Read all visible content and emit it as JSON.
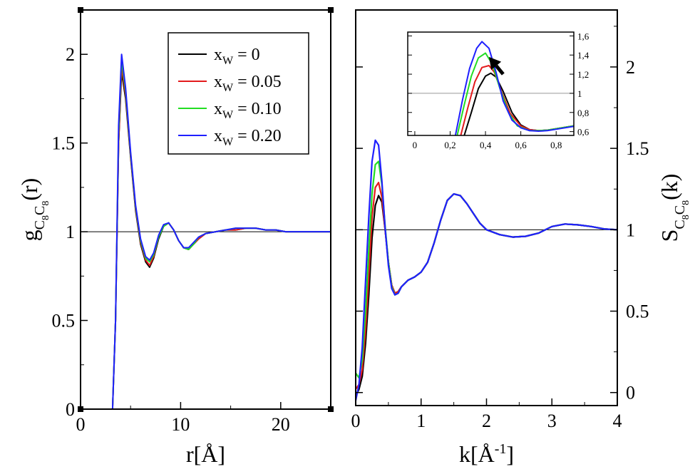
{
  "chart_data": [
    {
      "type": "line",
      "ylabel": "g",
      "ylabel_sub": "C8C8",
      "ylabel_suffix": "(r)",
      "xlabel": "r[Å]",
      "xlim": [
        0,
        25
      ],
      "ylim": [
        0,
        2.25
      ],
      "xticks": [
        "0",
        "10",
        "20"
      ],
      "xtick_values": [
        0,
        10,
        20
      ],
      "yticks": [
        "0",
        "0.5",
        "1",
        "1.5",
        "2"
      ],
      "ytick_values": [
        0,
        0.5,
        1,
        1.5,
        2
      ],
      "reference_line": 1,
      "legend": {
        "placement": "top-right",
        "entries": [
          {
            "var": "x",
            "sub": "W",
            "rest": " = 0",
            "color": "#000000"
          },
          {
            "var": "x",
            "sub": "W",
            "rest": " = 0.05",
            "color": "#e31a1c"
          },
          {
            "var": "x",
            "sub": "W",
            "rest": " = 0.10",
            "color": "#22dd22"
          },
          {
            "var": "x",
            "sub": "W",
            "rest": " = 0.20",
            "color": "#1f1fff"
          }
        ]
      },
      "series": [
        {
          "name": "xW = 0",
          "color": "#000000",
          "x": [
            3.2,
            3.5,
            3.8,
            4.1,
            4.5,
            5.0,
            5.5,
            6.0,
            6.5,
            6.9,
            7.3,
            7.8,
            8.3,
            8.8,
            9.3,
            9.8,
            10.3,
            10.8,
            11.3,
            11.8,
            12.5,
            13.5,
            14.5,
            15.5,
            16.5,
            17.5,
            18.5,
            19.5,
            20.5,
            21.5,
            22.5,
            23.5,
            25.0
          ],
          "y": [
            0.0,
            0.5,
            1.5,
            1.9,
            1.75,
            1.42,
            1.12,
            0.93,
            0.83,
            0.8,
            0.85,
            0.96,
            1.03,
            1.05,
            1.01,
            0.95,
            0.91,
            0.9,
            0.93,
            0.96,
            0.99,
            1.0,
            1.01,
            1.01,
            1.02,
            1.02,
            1.01,
            1.01,
            1.0,
            1.0,
            1.0,
            1.0,
            1.0
          ]
        },
        {
          "name": "xW = 0.05",
          "color": "#e31a1c",
          "x": [
            3.2,
            3.5,
            3.8,
            4.1,
            4.5,
            5.0,
            5.5,
            6.0,
            6.5,
            6.9,
            7.3,
            7.8,
            8.3,
            8.8,
            9.3,
            9.8,
            10.3,
            10.8,
            11.3,
            11.8,
            12.5,
            13.5,
            14.5,
            15.5,
            16.5,
            17.5,
            18.5,
            19.5,
            20.5,
            21.5,
            22.5,
            23.5,
            25.0
          ],
          "y": [
            0.0,
            0.5,
            1.5,
            1.93,
            1.77,
            1.43,
            1.13,
            0.94,
            0.84,
            0.81,
            0.86,
            0.97,
            1.03,
            1.05,
            1.01,
            0.95,
            0.91,
            0.9,
            0.93,
            0.96,
            0.99,
            1.0,
            1.01,
            1.01,
            1.02,
            1.02,
            1.01,
            1.01,
            1.0,
            1.0,
            1.0,
            1.0,
            1.0
          ]
        },
        {
          "name": "xW = 0.10",
          "color": "#22dd22",
          "x": [
            3.2,
            3.5,
            3.8,
            4.1,
            4.5,
            5.0,
            5.5,
            6.0,
            6.5,
            6.9,
            7.3,
            7.8,
            8.3,
            8.8,
            9.3,
            9.8,
            10.3,
            10.8,
            11.3,
            11.8,
            12.5,
            13.5,
            14.5,
            15.5,
            16.5,
            17.5,
            18.5,
            19.5,
            20.5,
            21.5,
            22.5,
            23.5,
            25.0
          ],
          "y": [
            0.0,
            0.5,
            1.55,
            1.97,
            1.79,
            1.44,
            1.14,
            0.95,
            0.85,
            0.83,
            0.87,
            0.97,
            1.03,
            1.05,
            1.01,
            0.95,
            0.91,
            0.9,
            0.93,
            0.97,
            0.99,
            1.0,
            1.01,
            1.02,
            1.02,
            1.02,
            1.01,
            1.01,
            1.0,
            1.0,
            1.0,
            1.0,
            1.0
          ]
        },
        {
          "name": "xW = 0.20",
          "color": "#1f1fff",
          "x": [
            3.2,
            3.5,
            3.8,
            4.1,
            4.5,
            5.0,
            5.5,
            6.0,
            6.5,
            6.9,
            7.3,
            7.8,
            8.3,
            8.8,
            9.3,
            9.8,
            10.3,
            10.8,
            11.3,
            11.8,
            12.5,
            13.5,
            14.5,
            15.5,
            16.5,
            17.5,
            18.5,
            19.5,
            20.5,
            21.5,
            22.5,
            23.5,
            25.0
          ],
          "y": [
            0.0,
            0.5,
            1.6,
            2.0,
            1.81,
            1.45,
            1.15,
            0.96,
            0.86,
            0.84,
            0.88,
            0.98,
            1.04,
            1.05,
            1.01,
            0.95,
            0.91,
            0.91,
            0.94,
            0.97,
            0.99,
            1.0,
            1.01,
            1.02,
            1.02,
            1.02,
            1.01,
            1.01,
            1.0,
            1.0,
            1.0,
            1.0,
            1.0
          ]
        }
      ]
    },
    {
      "type": "line",
      "ylabel": "S",
      "ylabel_sub": "C8C8",
      "ylabel_suffix": "(k)",
      "xlabel": "k[Å",
      "xlabel_sup": "-1",
      "xlabel_suffix": "]",
      "xlim": [
        0,
        4
      ],
      "ylim": [
        -0.08,
        2.35
      ],
      "xticks": [
        "0",
        "1",
        "2",
        "3",
        "4"
      ],
      "xtick_values": [
        0,
        1,
        2,
        3,
        4
      ],
      "yticks": [
        "0",
        "0.5",
        "1",
        "1.5",
        "2"
      ],
      "ytick_values": [
        0,
        0.5,
        1,
        1.5,
        2
      ],
      "ytick_side": "right",
      "reference_line": 1,
      "series": [
        {
          "name": "xW = 0",
          "color": "#000000",
          "x": [
            0.0,
            0.05,
            0.1,
            0.15,
            0.2,
            0.25,
            0.3,
            0.35,
            0.4,
            0.45,
            0.5,
            0.55,
            0.6,
            0.65,
            0.7,
            0.8,
            0.9,
            1.0,
            1.1,
            1.2,
            1.3,
            1.4,
            1.5,
            1.6,
            1.7,
            1.8,
            1.9,
            2.0,
            2.2,
            2.4,
            2.6,
            2.8,
            3.0,
            3.2,
            3.4,
            3.6,
            3.8,
            4.0
          ],
          "y": [
            -0.02,
            0.02,
            0.1,
            0.3,
            0.6,
            0.95,
            1.15,
            1.21,
            1.17,
            1.0,
            0.8,
            0.66,
            0.61,
            0.62,
            0.65,
            0.69,
            0.71,
            0.74,
            0.8,
            0.92,
            1.06,
            1.18,
            1.22,
            1.21,
            1.16,
            1.1,
            1.04,
            1.0,
            0.97,
            0.955,
            0.96,
            0.98,
            1.02,
            1.035,
            1.03,
            1.02,
            1.005,
            1.0
          ]
        },
        {
          "name": "xW = 0.05",
          "color": "#e31a1c",
          "x": [
            0.0,
            0.05,
            0.1,
            0.15,
            0.2,
            0.25,
            0.3,
            0.35,
            0.4,
            0.45,
            0.5,
            0.55,
            0.6,
            0.65,
            0.7,
            0.8,
            0.9,
            1.0,
            1.1,
            1.2,
            1.3,
            1.4,
            1.5,
            1.6,
            1.7,
            1.8,
            1.9,
            2.0,
            2.2,
            2.4,
            2.6,
            2.8,
            3.0,
            3.2,
            3.4,
            3.6,
            3.8,
            4.0
          ],
          "y": [
            0.02,
            0.05,
            0.14,
            0.38,
            0.72,
            1.08,
            1.26,
            1.29,
            1.2,
            1.0,
            0.8,
            0.66,
            0.61,
            0.62,
            0.65,
            0.69,
            0.71,
            0.74,
            0.8,
            0.92,
            1.06,
            1.18,
            1.22,
            1.21,
            1.16,
            1.1,
            1.04,
            1.0,
            0.97,
            0.955,
            0.96,
            0.98,
            1.02,
            1.035,
            1.03,
            1.02,
            1.005,
            1.0
          ]
        },
        {
          "name": "xW = 0.10",
          "color": "#22dd22",
          "x": [
            0.0,
            0.05,
            0.1,
            0.15,
            0.2,
            0.25,
            0.3,
            0.35,
            0.4,
            0.45,
            0.5,
            0.55,
            0.6,
            0.65,
            0.7,
            0.8,
            0.9,
            1.0,
            1.1,
            1.2,
            1.3,
            1.4,
            1.5,
            1.6,
            1.7,
            1.8,
            1.9,
            2.0,
            2.2,
            2.4,
            2.6,
            2.8,
            3.0,
            3.2,
            3.4,
            3.6,
            3.8,
            4.0
          ],
          "y": [
            0.12,
            0.09,
            0.2,
            0.5,
            0.88,
            1.22,
            1.4,
            1.42,
            1.28,
            1.02,
            0.8,
            0.65,
            0.6,
            0.61,
            0.65,
            0.69,
            0.71,
            0.74,
            0.8,
            0.92,
            1.06,
            1.18,
            1.22,
            1.21,
            1.16,
            1.1,
            1.04,
            1.0,
            0.97,
            0.955,
            0.96,
            0.98,
            1.02,
            1.035,
            1.03,
            1.02,
            1.005,
            1.0
          ]
        },
        {
          "name": "xW = 0.20",
          "color": "#1f1fff",
          "x": [
            0.0,
            0.05,
            0.1,
            0.15,
            0.2,
            0.25,
            0.3,
            0.35,
            0.4,
            0.45,
            0.5,
            0.55,
            0.6,
            0.65,
            0.7,
            0.8,
            0.9,
            1.0,
            1.1,
            1.2,
            1.3,
            1.4,
            1.5,
            1.6,
            1.7,
            1.8,
            1.9,
            2.0,
            2.2,
            2.4,
            2.6,
            2.8,
            3.0,
            3.2,
            3.4,
            3.6,
            3.8,
            4.0
          ],
          "y": [
            -0.05,
            0.05,
            0.28,
            0.68,
            1.08,
            1.42,
            1.55,
            1.52,
            1.3,
            1.01,
            0.78,
            0.64,
            0.6,
            0.61,
            0.65,
            0.69,
            0.71,
            0.74,
            0.8,
            0.92,
            1.06,
            1.18,
            1.22,
            1.21,
            1.16,
            1.1,
            1.04,
            1.0,
            0.97,
            0.955,
            0.96,
            0.98,
            1.02,
            1.035,
            1.03,
            1.02,
            1.005,
            1.0
          ]
        }
      ],
      "inset": {
        "xlim": [
          -0.04,
          0.9
        ],
        "ylim": [
          0.56,
          1.64
        ],
        "xticks": [
          "0",
          "0,2",
          "0,4",
          "0,6",
          "0,8"
        ],
        "xtick_values": [
          0,
          0.2,
          0.4,
          0.6,
          0.8
        ],
        "yticks": [
          "0,6",
          "0,8",
          "1",
          "1,2",
          "1,4",
          "1,6"
        ],
        "ytick_values": [
          0.6,
          0.8,
          1.0,
          1.2,
          1.4,
          1.6
        ],
        "ytick_side": "right",
        "reference_line": 1,
        "arrow": {
          "from": [
            0.5,
            1.2
          ],
          "to": [
            0.42,
            1.38
          ]
        },
        "series": [
          {
            "name": "xW = 0",
            "color": "#000000",
            "x": [
              0.28,
              0.32,
              0.36,
              0.4,
              0.43,
              0.46,
              0.5,
              0.55,
              0.6,
              0.65,
              0.7,
              0.75,
              0.8,
              0.85,
              0.9
            ],
            "y": [
              0.56,
              0.8,
              1.05,
              1.18,
              1.21,
              1.17,
              1.02,
              0.8,
              0.67,
              0.62,
              0.61,
              0.615,
              0.63,
              0.645,
              0.66
            ]
          },
          {
            "name": "xW = 0.05",
            "color": "#e31a1c",
            "x": [
              0.26,
              0.3,
              0.34,
              0.38,
              0.42,
              0.45,
              0.49,
              0.54,
              0.6,
              0.65,
              0.7,
              0.75,
              0.8,
              0.85,
              0.9
            ],
            "y": [
              0.56,
              0.85,
              1.12,
              1.27,
              1.29,
              1.22,
              1.02,
              0.79,
              0.66,
              0.62,
              0.61,
              0.615,
              0.63,
              0.645,
              0.66
            ]
          },
          {
            "name": "xW = 0.10",
            "color": "#22dd22",
            "x": [
              0.24,
              0.28,
              0.32,
              0.36,
              0.4,
              0.44,
              0.48,
              0.53,
              0.58,
              0.65,
              0.7,
              0.75,
              0.8,
              0.85,
              0.9
            ],
            "y": [
              0.56,
              0.88,
              1.18,
              1.37,
              1.42,
              1.3,
              1.06,
              0.8,
              0.66,
              0.61,
              0.61,
              0.615,
              0.63,
              0.645,
              0.66
            ]
          },
          {
            "name": "xW = 0.20",
            "color": "#1f1fff",
            "x": [
              0.23,
              0.27,
              0.31,
              0.35,
              0.38,
              0.42,
              0.46,
              0.5,
              0.55,
              0.6,
              0.65,
              0.7,
              0.75,
              0.8,
              0.85,
              0.9
            ],
            "y": [
              0.56,
              0.93,
              1.26,
              1.47,
              1.54,
              1.47,
              1.22,
              0.92,
              0.72,
              0.64,
              0.61,
              0.605,
              0.61,
              0.625,
              0.64,
              0.655
            ]
          }
        ]
      }
    }
  ]
}
